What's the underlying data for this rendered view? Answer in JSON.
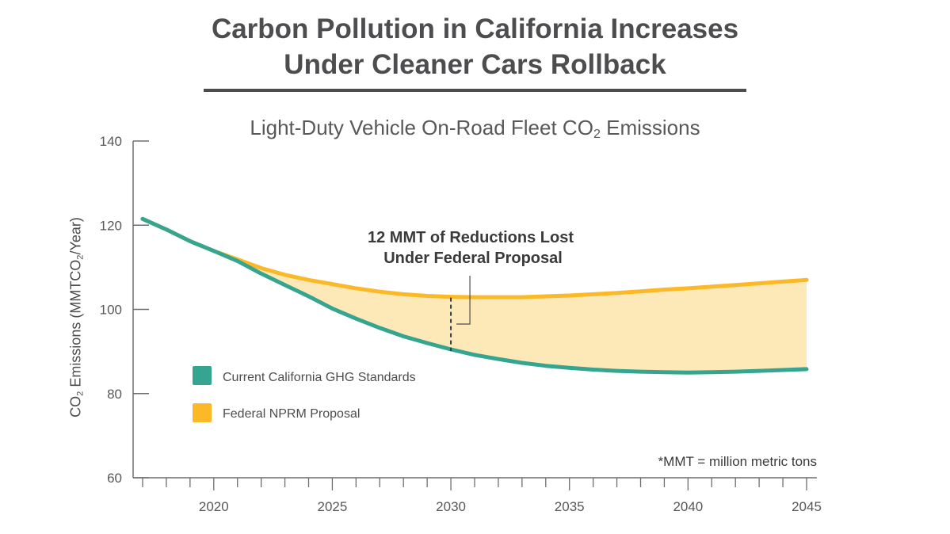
{
  "header": {
    "title_line1": "Carbon Pollution in California Increases",
    "title_line2": "Under Cleaner Cars Rollback"
  },
  "chart_data": {
    "type": "line",
    "title": "Light-Duty Vehicle On-Road Fleet CO2 Emissions",
    "subtitle_parts": {
      "pre": "Light-Duty Vehicle On-Road Fleet CO",
      "sub": "2",
      "post": " Emissions"
    },
    "ylabel": "CO2 Emissions (MMTCO2/Year)",
    "ylabel_parts": {
      "a": "CO",
      "b": "2",
      "c": " Emissions (MMTCO",
      "d": "2",
      "e": "/Year)"
    },
    "xlabel": "",
    "xlim": [
      2017,
      2045
    ],
    "ylim": [
      60,
      140
    ],
    "x_ticks": [
      2020,
      2025,
      2030,
      2035,
      2040,
      2045
    ],
    "y_ticks": [
      60,
      80,
      100,
      120,
      140
    ],
    "legend_position": "middle-left",
    "series": [
      {
        "name": "Current California GHG Standards",
        "color": "#35a58f",
        "points": [
          [
            2017,
            121.5
          ],
          [
            2018,
            119
          ],
          [
            2019,
            116.2
          ],
          [
            2020,
            113.9
          ],
          [
            2021,
            111.5
          ],
          [
            2022,
            108.5
          ],
          [
            2023,
            105.8
          ],
          [
            2024,
            103.1
          ],
          [
            2025,
            100.2
          ],
          [
            2026,
            97.8
          ],
          [
            2027,
            95.6
          ],
          [
            2028,
            93.6
          ],
          [
            2029,
            92.0
          ],
          [
            2030,
            90.5
          ],
          [
            2031,
            89.2
          ],
          [
            2032,
            88.2
          ],
          [
            2033,
            87.3
          ],
          [
            2034,
            86.6
          ],
          [
            2035,
            86.1
          ],
          [
            2036,
            85.7
          ],
          [
            2037,
            85.4
          ],
          [
            2038,
            85.2
          ],
          [
            2039,
            85.1
          ],
          [
            2040,
            85.0
          ],
          [
            2041,
            85.1
          ],
          [
            2042,
            85.2
          ],
          [
            2043,
            85.4
          ],
          [
            2044,
            85.6
          ],
          [
            2045,
            85.8
          ]
        ]
      },
      {
        "name": "Federal NPRM Proposal",
        "color": "#fbb928",
        "points": [
          [
            2017,
            121.5
          ],
          [
            2018,
            119
          ],
          [
            2019,
            116.2
          ],
          [
            2020,
            113.9
          ],
          [
            2021,
            111.9
          ],
          [
            2022,
            109.8
          ],
          [
            2023,
            108.2
          ],
          [
            2024,
            107.0
          ],
          [
            2025,
            106.0
          ],
          [
            2026,
            105.0
          ],
          [
            2027,
            104.2
          ],
          [
            2028,
            103.6
          ],
          [
            2029,
            103.2
          ],
          [
            2030,
            103.0
          ],
          [
            2031,
            102.9
          ],
          [
            2032,
            102.9
          ],
          [
            2033,
            102.9
          ],
          [
            2034,
            103.1
          ],
          [
            2035,
            103.3
          ],
          [
            2036,
            103.6
          ],
          [
            2037,
            103.9
          ],
          [
            2038,
            104.3
          ],
          [
            2039,
            104.7
          ],
          [
            2040,
            105.0
          ],
          [
            2041,
            105.4
          ],
          [
            2042,
            105.8
          ],
          [
            2043,
            106.2
          ],
          [
            2044,
            106.6
          ],
          [
            2045,
            107.0
          ]
        ]
      }
    ],
    "fill_color": "#fde8b8",
    "annotation": {
      "line1": "12 MMT of Reductions Lost",
      "line2": "Under Federal Proposal",
      "x": 2030
    },
    "footnote": "*MMT = million metric tons"
  }
}
